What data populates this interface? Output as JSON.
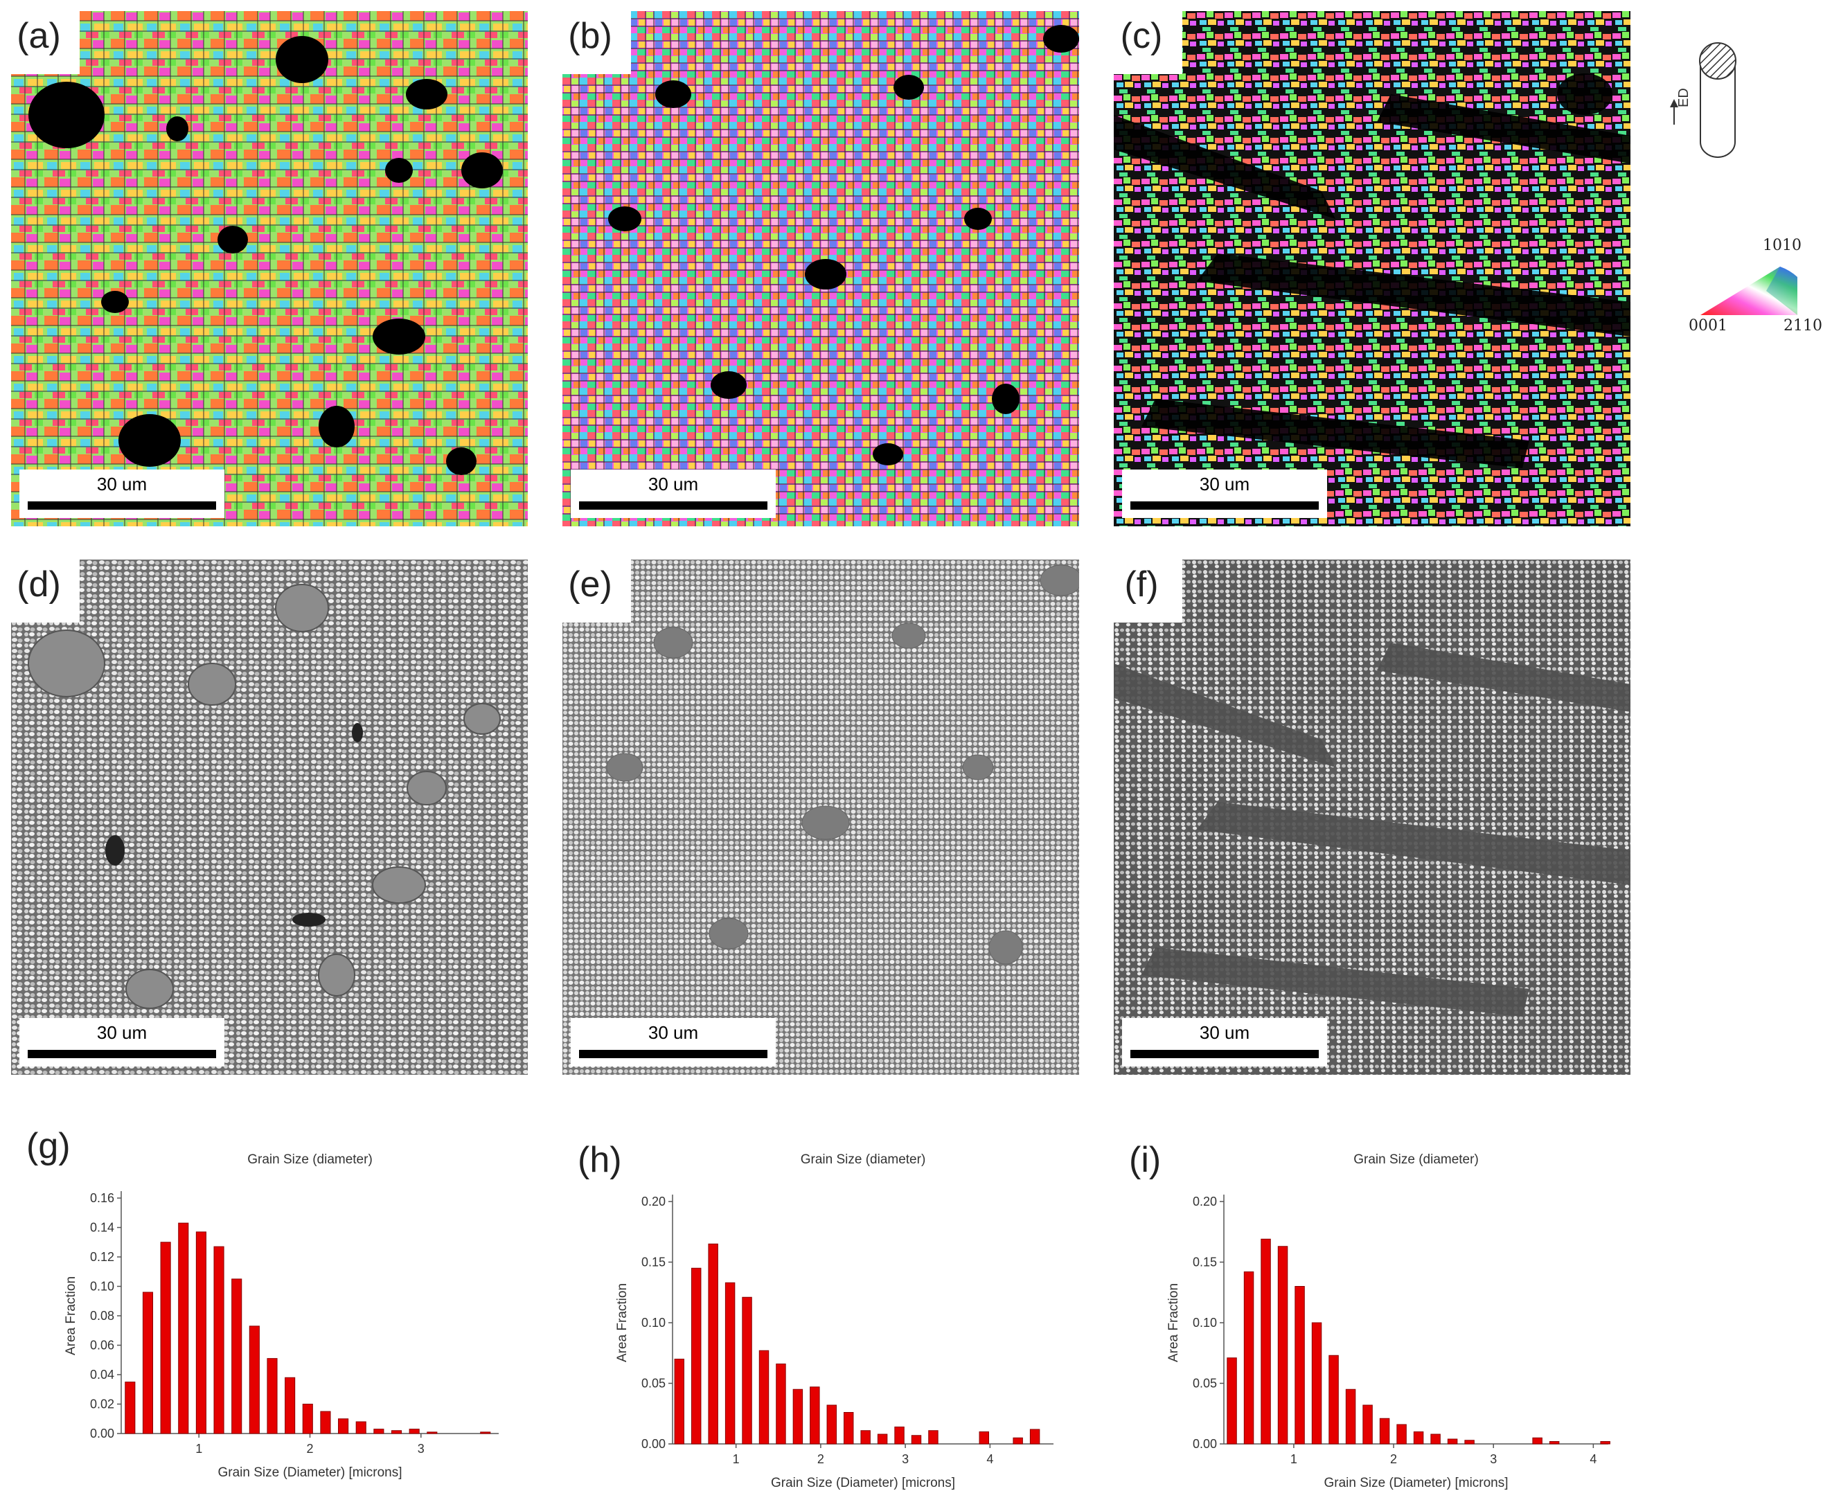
{
  "panels": {
    "a": {
      "letter": "(a)",
      "scale": "30 um"
    },
    "b": {
      "letter": "(b)",
      "scale": "30 um"
    },
    "c": {
      "letter": "(c)",
      "scale": "30 um"
    },
    "d": {
      "letter": "(d)",
      "scale": "30 um"
    },
    "e": {
      "letter": "(e)",
      "scale": "30 um"
    },
    "f": {
      "letter": "(f)",
      "scale": "30 um"
    }
  },
  "legend": {
    "direction_label": "ED",
    "ipf_top": "10̅1̅0",
    "ipf_top_text": "1010",
    "ipf_left": "0001",
    "ipf_right": "2110"
  },
  "histogram_letters": {
    "g": "(g)",
    "h": "(h)",
    "i": "(i)"
  },
  "colors": {
    "bar": "#e50000",
    "bar_edge": "#8a0000"
  },
  "chart_data": [
    {
      "type": "bar",
      "title": "Grain Size (diameter)",
      "xlabel": "Grain Size (Diameter) [microns]",
      "ylabel": "Area Fraction",
      "xlim": [
        0.3,
        3.7
      ],
      "ylim": [
        0,
        0.16
      ],
      "yticks": [
        "0.00",
        "0.02",
        "0.04",
        "0.06",
        "0.08",
        "0.10",
        "0.12",
        "0.14",
        "0.16"
      ],
      "ytick_values": [
        0,
        0.02,
        0.04,
        0.06,
        0.08,
        0.1,
        0.12,
        0.14,
        0.16
      ],
      "xticks": [
        "1",
        "2",
        "3"
      ],
      "xtick_values": [
        1,
        2,
        3
      ],
      "x": [
        0.38,
        0.54,
        0.7,
        0.86,
        1.02,
        1.18,
        1.34,
        1.5,
        1.66,
        1.82,
        1.98,
        2.14,
        2.3,
        2.46,
        2.62,
        2.78,
        2.94,
        3.1,
        3.26,
        3.42,
        3.58
      ],
      "values": [
        0.035,
        0.096,
        0.13,
        0.143,
        0.137,
        0.127,
        0.105,
        0.073,
        0.051,
        0.038,
        0.02,
        0.015,
        0.01,
        0.008,
        0.003,
        0.002,
        0.003,
        0.001,
        0.0,
        0.0,
        0.001
      ]
    },
    {
      "type": "bar",
      "title": "Grain Size (diameter)",
      "xlabel": "Grain Size (Diameter) [microns]",
      "ylabel": "Area Fraction",
      "xlim": [
        0.25,
        4.75
      ],
      "ylim": [
        0,
        0.2
      ],
      "yticks": [
        "0.00",
        "0.05",
        "0.10",
        "0.15",
        "0.20"
      ],
      "ytick_values": [
        0,
        0.05,
        0.1,
        0.15,
        0.2
      ],
      "xticks": [
        "1",
        "2",
        "3",
        "4"
      ],
      "xtick_values": [
        1,
        2,
        3,
        4
      ],
      "x": [
        0.33,
        0.53,
        0.73,
        0.93,
        1.13,
        1.33,
        1.53,
        1.73,
        1.93,
        2.13,
        2.33,
        2.53,
        2.73,
        2.93,
        3.13,
        3.33,
        3.53,
        3.73,
        3.93,
        4.13,
        4.33,
        4.53
      ],
      "values": [
        0.07,
        0.145,
        0.165,
        0.133,
        0.121,
        0.077,
        0.066,
        0.045,
        0.047,
        0.032,
        0.026,
        0.011,
        0.008,
        0.014,
        0.007,
        0.011,
        0.0,
        0.0,
        0.01,
        0.0,
        0.005,
        0.012
      ]
    },
    {
      "type": "bar",
      "title": "Grain Size (diameter)",
      "xlabel": "Grain Size (Diameter) [microns]",
      "ylabel": "Area Fraction",
      "xlim": [
        0.3,
        4.15
      ],
      "ylim": [
        0,
        0.2
      ],
      "yticks": [
        "0.00",
        "0.05",
        "0.10",
        "0.15",
        "0.20"
      ],
      "ytick_values": [
        0,
        0.05,
        0.1,
        0.15,
        0.2
      ],
      "xticks": [
        "1",
        "2",
        "3",
        "4"
      ],
      "xtick_values": [
        1,
        2,
        3,
        4
      ],
      "x": [
        0.38,
        0.55,
        0.72,
        0.89,
        1.06,
        1.23,
        1.4,
        1.57,
        1.74,
        1.91,
        2.08,
        2.25,
        2.42,
        2.59,
        2.76,
        2.93,
        3.1,
        3.27,
        3.44,
        3.61,
        3.78,
        3.95,
        4.12
      ],
      "values": [
        0.071,
        0.142,
        0.169,
        0.163,
        0.13,
        0.1,
        0.073,
        0.045,
        0.032,
        0.021,
        0.016,
        0.01,
        0.008,
        0.004,
        0.003,
        0.0,
        0.0,
        0.0,
        0.005,
        0.002,
        0.0,
        0.0,
        0.002
      ]
    }
  ]
}
